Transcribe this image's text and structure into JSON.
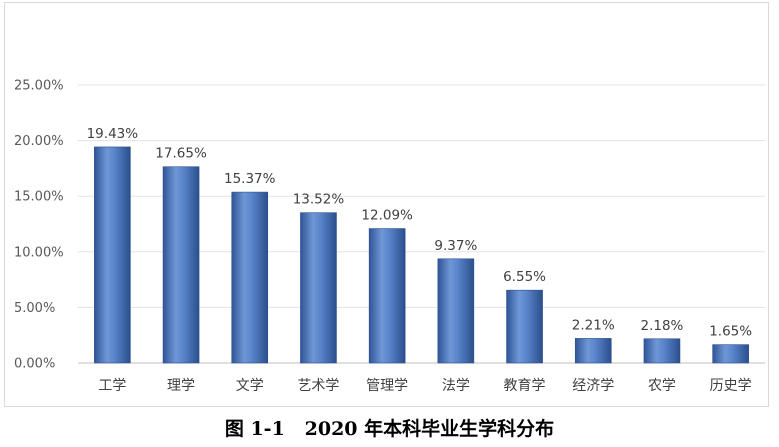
{
  "chart_data": {
    "type": "bar",
    "categories": [
      "工学",
      "理学",
      "文学",
      "艺术学",
      "管理学",
      "法学",
      "教育学",
      "经济学",
      "农学",
      "历史学"
    ],
    "values": [
      19.43,
      17.65,
      15.37,
      13.52,
      12.09,
      9.37,
      6.55,
      2.21,
      2.18,
      1.65
    ],
    "data_labels": [
      "19.43%",
      "17.65%",
      "15.37%",
      "13.52%",
      "12.09%",
      "9.37%",
      "6.55%",
      "2.21%",
      "2.18%",
      "1.65%"
    ],
    "y_ticks": [
      "0.00%",
      "5.00%",
      "10.00%",
      "15.00%",
      "20.00%",
      "25.00%"
    ],
    "ylim": [
      0,
      25
    ],
    "grid": true,
    "legend": "none",
    "bar_color": "#4a76bd",
    "title": "",
    "xlabel": "",
    "ylabel": ""
  },
  "caption": "图 1-1   2020 年本科毕业生学科分布"
}
